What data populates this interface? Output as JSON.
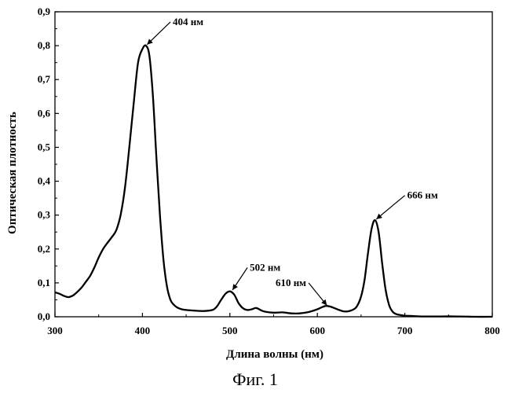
{
  "caption": "Фиг. 1",
  "chart_data": {
    "type": "line",
    "title": "",
    "xlabel": "Длина волны (нм)",
    "ylabel": "Оптическая плотность",
    "xlim": [
      300,
      800
    ],
    "ylim": [
      0,
      0.9
    ],
    "xticks": [
      "300",
      "400",
      "500",
      "600",
      "700",
      "800"
    ],
    "yticks": [
      "0,0",
      "0,1",
      "0,2",
      "0,3",
      "0,4",
      "0,5",
      "0,6",
      "0,7",
      "0,8",
      "0,9"
    ],
    "grid": false,
    "series": [
      {
        "x": [
          300,
          305,
          310,
          315,
          320,
          325,
          330,
          335,
          340,
          345,
          350,
          355,
          360,
          365,
          370,
          375,
          380,
          385,
          390,
          395,
          400,
          404,
          408,
          412,
          416,
          420,
          424,
          428,
          432,
          436,
          440,
          445,
          450,
          460,
          470,
          480,
          485,
          490,
          495,
          500,
          505,
          510,
          515,
          520,
          525,
          530,
          535,
          540,
          550,
          560,
          570,
          580,
          590,
          600,
          605,
          610,
          615,
          620,
          625,
          630,
          635,
          640,
          645,
          650,
          654,
          658,
          662,
          666,
          670,
          674,
          678,
          682,
          686,
          690,
          695,
          700,
          710,
          720,
          740,
          760,
          780,
          800
        ],
        "y": [
          0.072,
          0.068,
          0.062,
          0.058,
          0.062,
          0.072,
          0.085,
          0.102,
          0.12,
          0.145,
          0.175,
          0.2,
          0.218,
          0.235,
          0.255,
          0.3,
          0.38,
          0.5,
          0.63,
          0.75,
          0.79,
          0.8,
          0.77,
          0.65,
          0.47,
          0.3,
          0.17,
          0.09,
          0.05,
          0.035,
          0.027,
          0.022,
          0.02,
          0.018,
          0.017,
          0.02,
          0.03,
          0.05,
          0.068,
          0.075,
          0.065,
          0.04,
          0.025,
          0.02,
          0.022,
          0.026,
          0.02,
          0.015,
          0.012,
          0.013,
          0.01,
          0.01,
          0.014,
          0.022,
          0.028,
          0.032,
          0.03,
          0.025,
          0.02,
          0.016,
          0.016,
          0.02,
          0.03,
          0.06,
          0.11,
          0.19,
          0.26,
          0.285,
          0.25,
          0.16,
          0.08,
          0.035,
          0.015,
          0.008,
          0.005,
          0.003,
          0.002,
          0.001,
          0.001,
          0.001,
          0.0,
          0.0
        ]
      }
    ],
    "annotations": [
      {
        "text": "404 нм",
        "x": 404,
        "y": 0.8,
        "label_x": 432,
        "label_y": 0.87
      },
      {
        "text": "502 нм",
        "x": 502,
        "y": 0.075,
        "label_x": 520,
        "label_y": 0.145
      },
      {
        "text": "610 нм",
        "x": 612,
        "y": 0.03,
        "label_x": 590,
        "label_y": 0.1
      },
      {
        "text": "666 нм",
        "x": 666,
        "y": 0.285,
        "label_x": 700,
        "label_y": 0.358
      }
    ]
  }
}
